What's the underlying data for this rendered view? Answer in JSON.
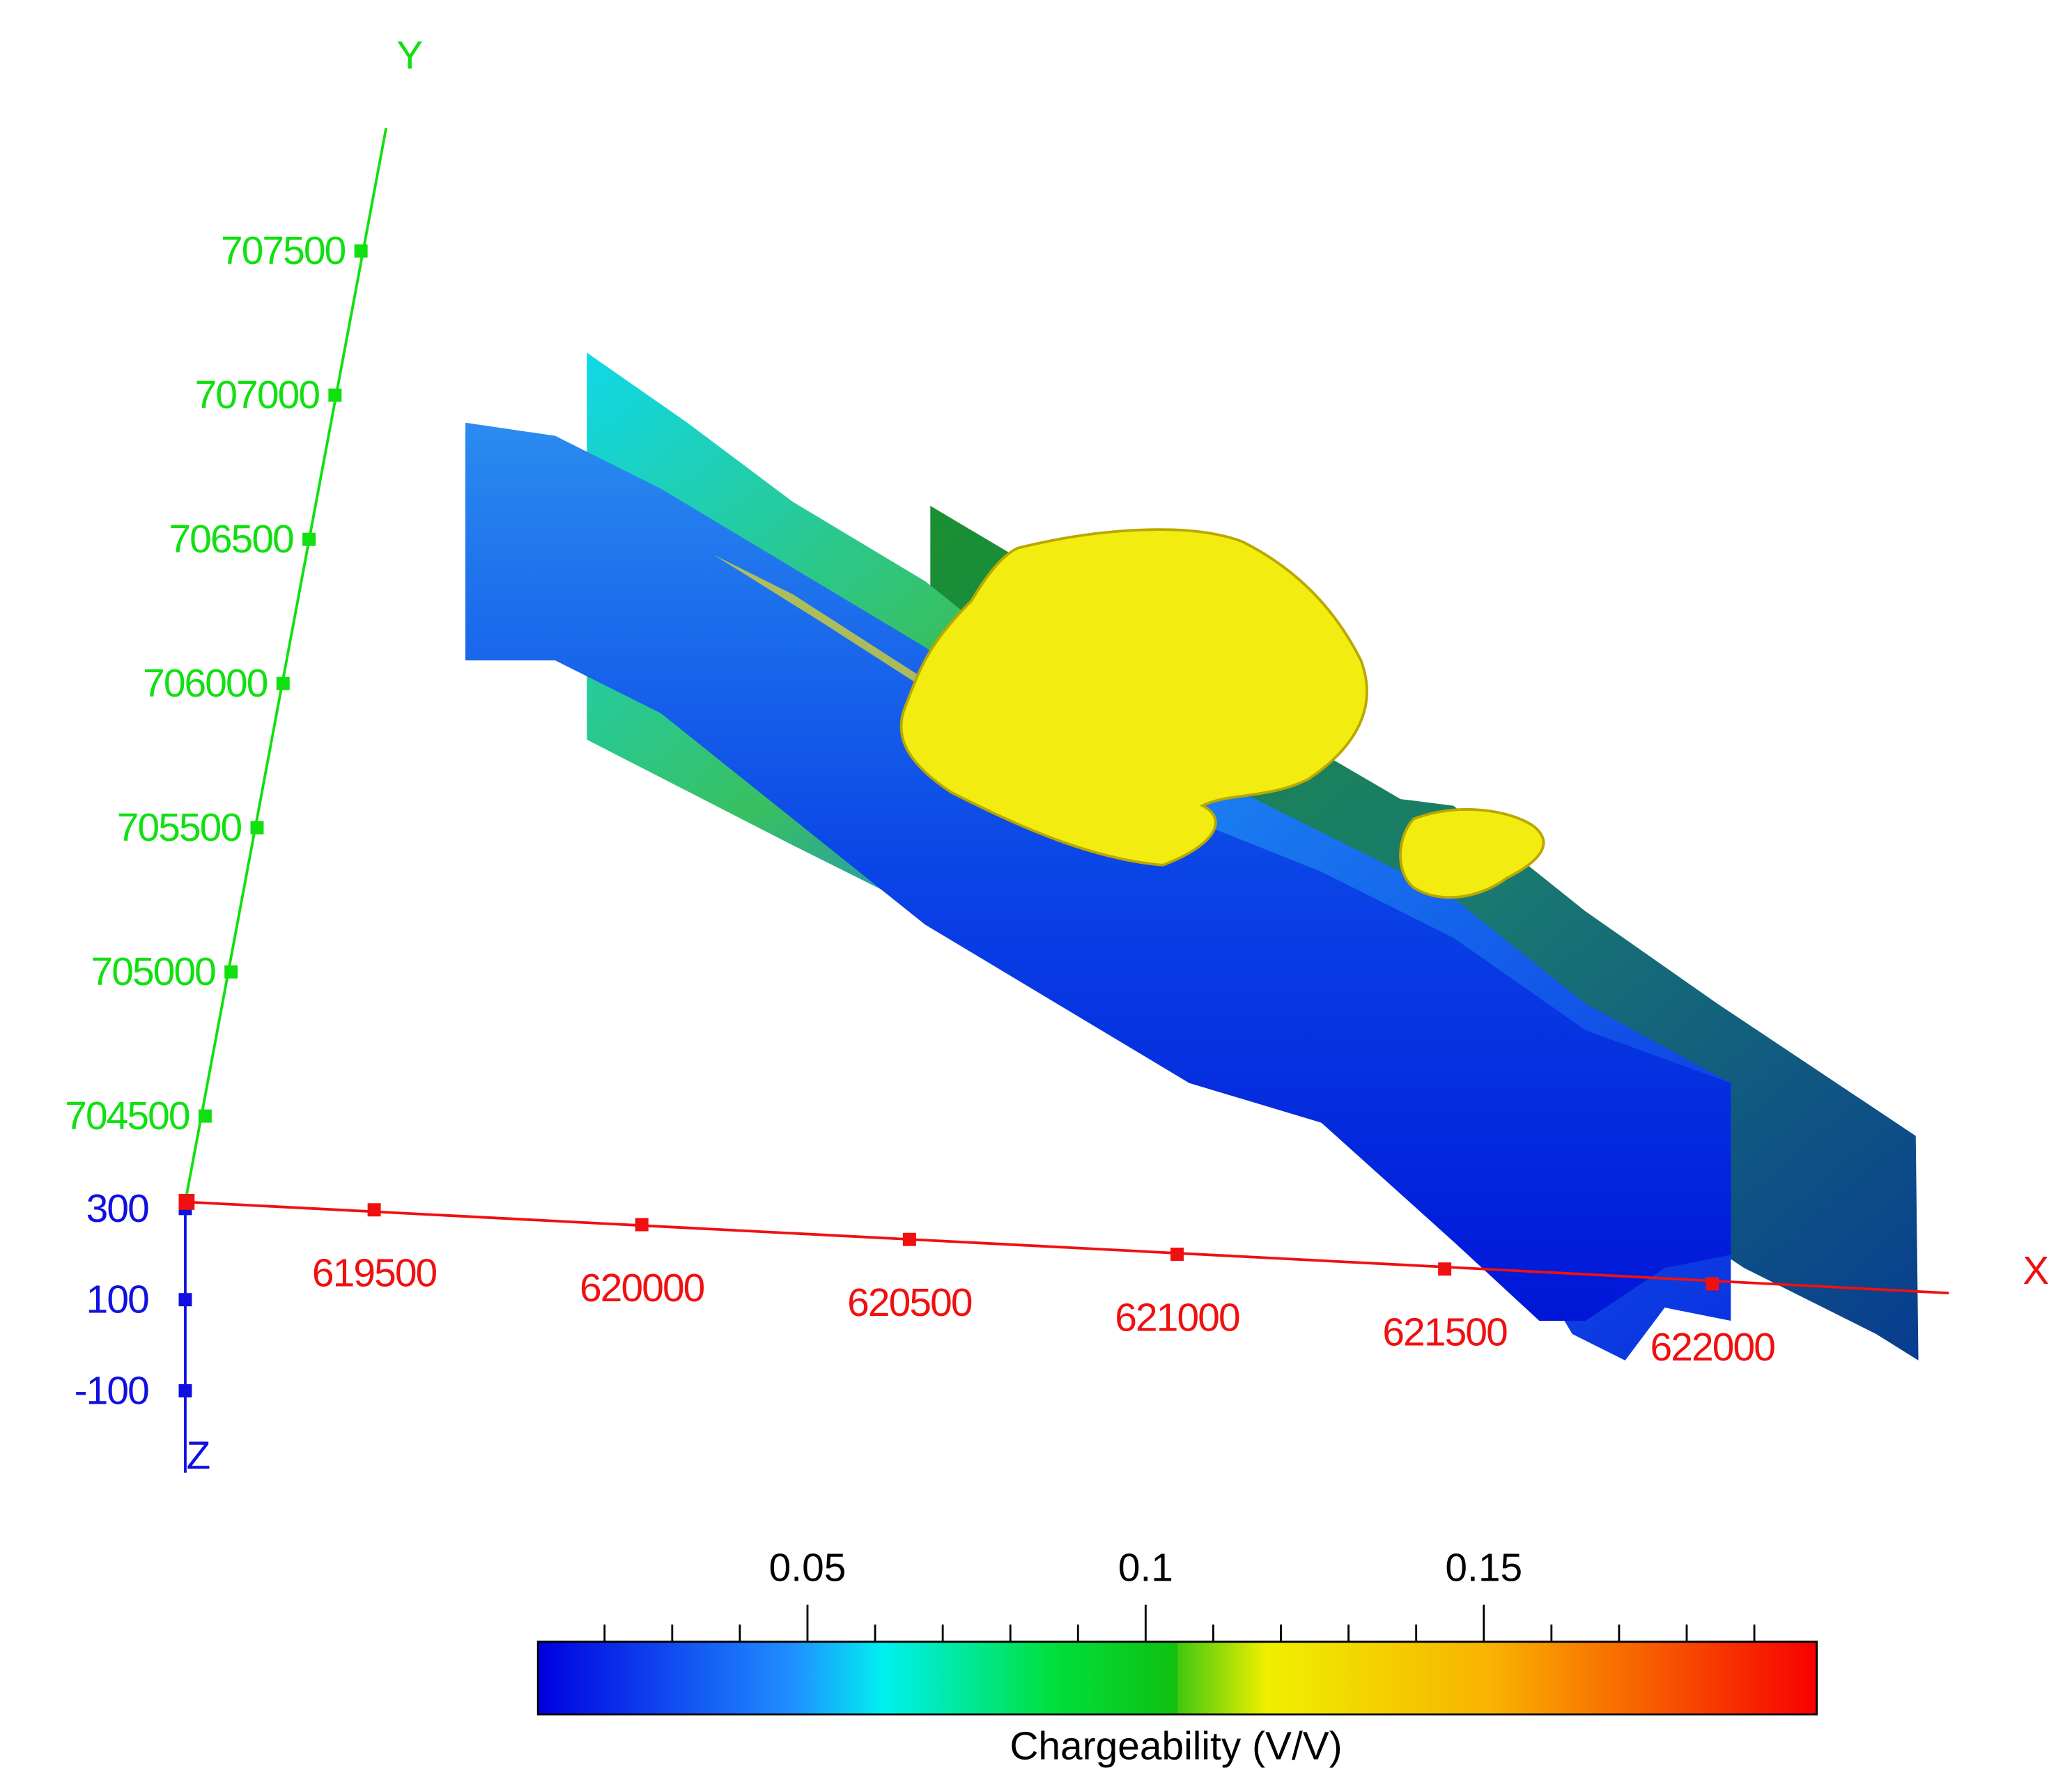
{
  "axes": {
    "y": {
      "label": "Y",
      "ticks": [
        704500,
        705000,
        705500,
        706000,
        706500,
        707000,
        707500
      ]
    },
    "x": {
      "label": "X",
      "ticks": [
        619500,
        620000,
        620500,
        621000,
        621500,
        622000
      ]
    },
    "z": {
      "label": "Z",
      "ticks": [
        300,
        100,
        -100
      ]
    }
  },
  "colorbar": {
    "title": "Chargeability (V/V)",
    "ticks": [
      0.05,
      0.1,
      0.15
    ]
  }
}
